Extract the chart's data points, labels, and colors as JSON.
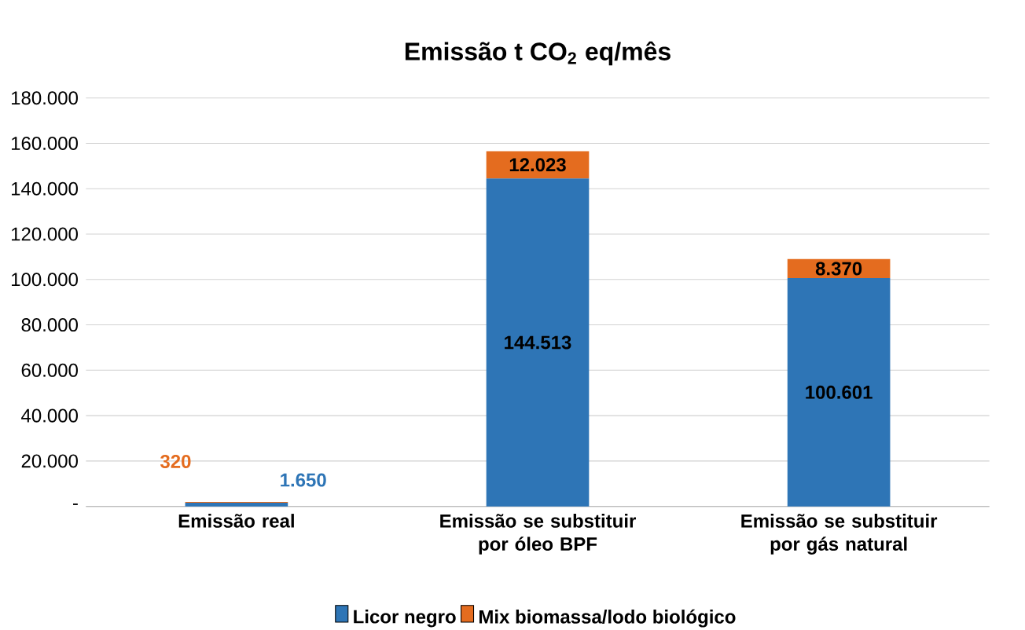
{
  "chart_data": {
    "type": "bar",
    "stacked": true,
    "title": "Emissão t CO$_{2}$ eq/mês",
    "categories": [
      "Emissão real",
      "Emissão se substituir por óleo BPF",
      "Emissão se substituir por gás natural"
    ],
    "series": [
      {
        "name": "Licor negro",
        "color": "#2e75b6",
        "values": [
          1650,
          144513,
          100601
        ],
        "value_labels": [
          "1.650",
          "144.513",
          "100.601"
        ]
      },
      {
        "name": "Mix  biomassa/lodo biológico",
        "color": "#e46c1f",
        "values": [
          320,
          12023,
          8370
        ],
        "value_labels": [
          "320",
          "12.023",
          "8.370"
        ]
      }
    ],
    "ylim": [
      0,
      180000
    ],
    "yticks": [
      {
        "value": 0,
        "label": "-"
      },
      {
        "value": 20000,
        "label": "20.000"
      },
      {
        "value": 40000,
        "label": "40.000"
      },
      {
        "value": 60000,
        "label": "60.000"
      },
      {
        "value": 80000,
        "label": "80.000"
      },
      {
        "value": 100000,
        "label": "100.000"
      },
      {
        "value": 120000,
        "label": "120.000"
      },
      {
        "value": 140000,
        "label": "140.000"
      },
      {
        "value": 160000,
        "label": "160.000"
      },
      {
        "value": 180000,
        "label": "180.000"
      }
    ],
    "grid": "y",
    "legend": "bottom"
  }
}
